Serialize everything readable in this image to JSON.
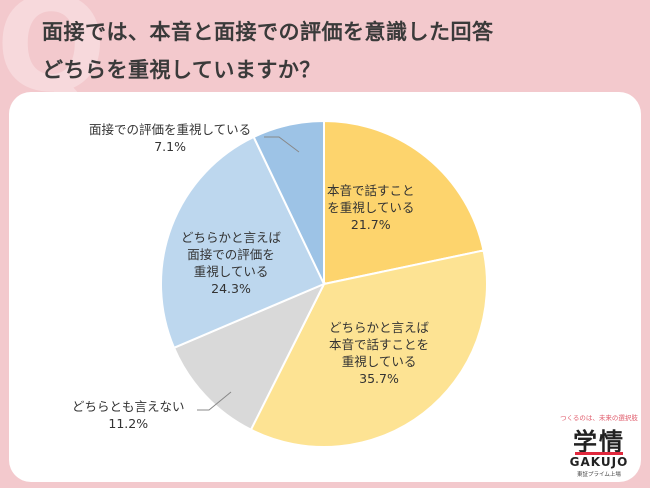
{
  "header": {
    "line1": "面接では、本音と面接での評価を意識した回答",
    "line2": "どちらを重視していますか？"
  },
  "chart_data": {
    "type": "pie",
    "start": "12 o'clock",
    "direction": "clockwise",
    "slices": [
      {
        "lines": [
          "本音で話すことを重視している"
        ],
        "label_lines": [
          "本音で話すこと",
          "を重視している"
        ],
        "value": 21.7,
        "pct": "21.7%",
        "color": "#fdd46d"
      },
      {
        "label_lines": [
          "どちらかと言えば",
          "本音で話すことを",
          "重視している"
        ],
        "value": 35.7,
        "pct": "35.7%",
        "color": "#fde393"
      },
      {
        "label_lines": [
          "どちらとも言えない"
        ],
        "value": 11.2,
        "pct": "11.2%",
        "color": "#d9d9d9"
      },
      {
        "label_lines": [
          "どちらかと言えば",
          "面接での評価を",
          "重視している"
        ],
        "value": 24.3,
        "pct": "24.3%",
        "color": "#bdd7ee"
      },
      {
        "label_lines": [
          "面接での評価を重視している"
        ],
        "value": 7.1,
        "pct": "7.1%",
        "color": "#9dc3e6"
      }
    ]
  },
  "logo": {
    "tagline": "つくるのは、未来の選択肢",
    "name_kanji": "学情",
    "name_roman": "GAKUJO",
    "sub": "東証プライム上場"
  },
  "colors": {
    "background": "#f3c9cd",
    "accent": "#e0283c"
  }
}
